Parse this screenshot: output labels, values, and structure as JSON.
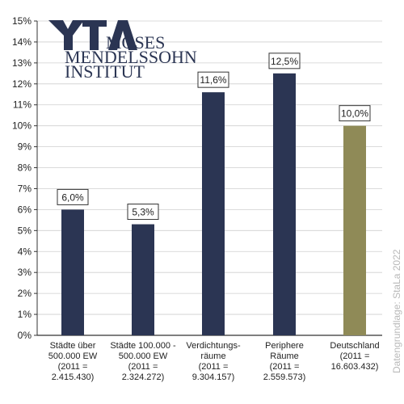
{
  "logo": {
    "mark": "YTA",
    "lines": [
      "MOSES",
      "MENDELSSOHN",
      "INSTITUT"
    ]
  },
  "source_note": "Datengrundlage: StaLa 2022",
  "colors": {
    "bar": "#2b3553",
    "highlight": "#8f8a57",
    "axis": "#333333",
    "grid": "#cfcfcf"
  },
  "chart_data": {
    "type": "bar",
    "ylim": [
      0,
      15
    ],
    "y_ticks": [
      "0%",
      "1%",
      "2%",
      "3%",
      "4%",
      "5%",
      "6%",
      "7%",
      "8%",
      "9%",
      "10%",
      "11%",
      "12%",
      "13%",
      "14%",
      "15%"
    ],
    "grid": true,
    "categories": [
      [
        "Städte über",
        "500.000 EW",
        "(2011 =",
        "2.415.430)"
      ],
      [
        "Städte 100.000 -",
        "500.000 EW",
        "(2011 =",
        "2.324.272)"
      ],
      [
        "Verdichtungs-",
        "räume",
        "(2011 =",
        "9.304.157)"
      ],
      [
        "Periphere",
        "Räume",
        "(2011 =",
        "2.559.573)"
      ],
      [
        "Deutschland",
        "(2011 =",
        "16.603.432)"
      ]
    ],
    "values": [
      6.0,
      5.3,
      11.6,
      12.5,
      10.0
    ],
    "labels": [
      "6,0%",
      "5,3%",
      "11,6%",
      "12,5%",
      "10,0%"
    ],
    "highlight_index": 4
  }
}
